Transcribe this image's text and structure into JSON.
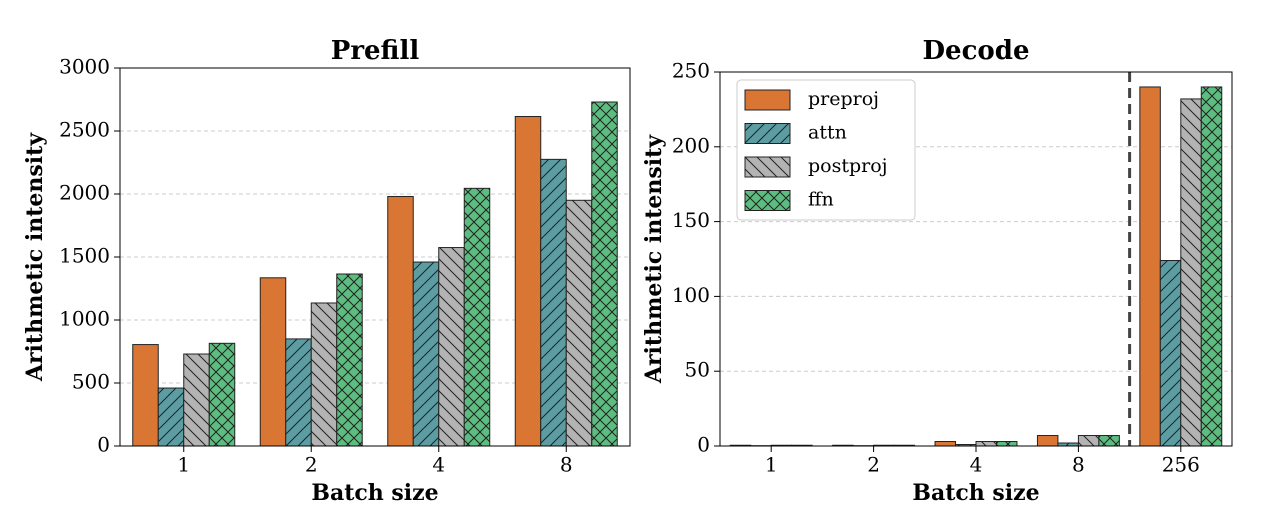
{
  "chart_data": [
    {
      "type": "bar",
      "title": "Prefill",
      "x_label": "Batch size",
      "y_label": "Arithmetic intensity",
      "categories": [
        "1",
        "2",
        "4",
        "8"
      ],
      "series": [
        {
          "name": "preproj",
          "color": "#d97634",
          "hatch": "",
          "values": [
            805,
            1335,
            1980,
            2615
          ]
        },
        {
          "name": "attn",
          "color": "#5b9da3",
          "hatch": "/",
          "values": [
            460,
            850,
            1460,
            2275
          ]
        },
        {
          "name": "postproj",
          "color": "#b3b3b3",
          "hatch": "\\",
          "values": [
            730,
            1135,
            1575,
            1950
          ]
        },
        {
          "name": "ffn",
          "color": "#5dbd80",
          "hatch": "x",
          "values": [
            815,
            1365,
            2045,
            2730
          ]
        }
      ],
      "ylim": [
        0,
        3000
      ],
      "yticks": [
        0,
        500,
        1000,
        1500,
        2000,
        2500,
        3000
      ],
      "grid": true,
      "legend": false
    },
    {
      "type": "bar",
      "title": "Decode",
      "x_label": "Batch size",
      "y_label": "Arithmetic intensity",
      "categories": [
        "1",
        "2",
        "4",
        "8",
        "256"
      ],
      "series": [
        {
          "name": "preproj",
          "color": "#d97634",
          "hatch": "",
          "values": [
            0.5,
            0.5,
            3,
            7,
            240
          ]
        },
        {
          "name": "attn",
          "color": "#5b9da3",
          "hatch": "/",
          "values": [
            0.2,
            0.2,
            1,
            2,
            124
          ]
        },
        {
          "name": "postproj",
          "color": "#b3b3b3",
          "hatch": "\\",
          "values": [
            0.5,
            0.5,
            3,
            7,
            232
          ]
        },
        {
          "name": "ffn",
          "color": "#5dbd80",
          "hatch": "x",
          "values": [
            0.5,
            0.5,
            3,
            7,
            240
          ]
        }
      ],
      "ylim": [
        0,
        250
      ],
      "yticks": [
        0,
        50,
        100,
        150,
        200,
        250
      ],
      "grid": true,
      "legend": "upper left"
    }
  ]
}
